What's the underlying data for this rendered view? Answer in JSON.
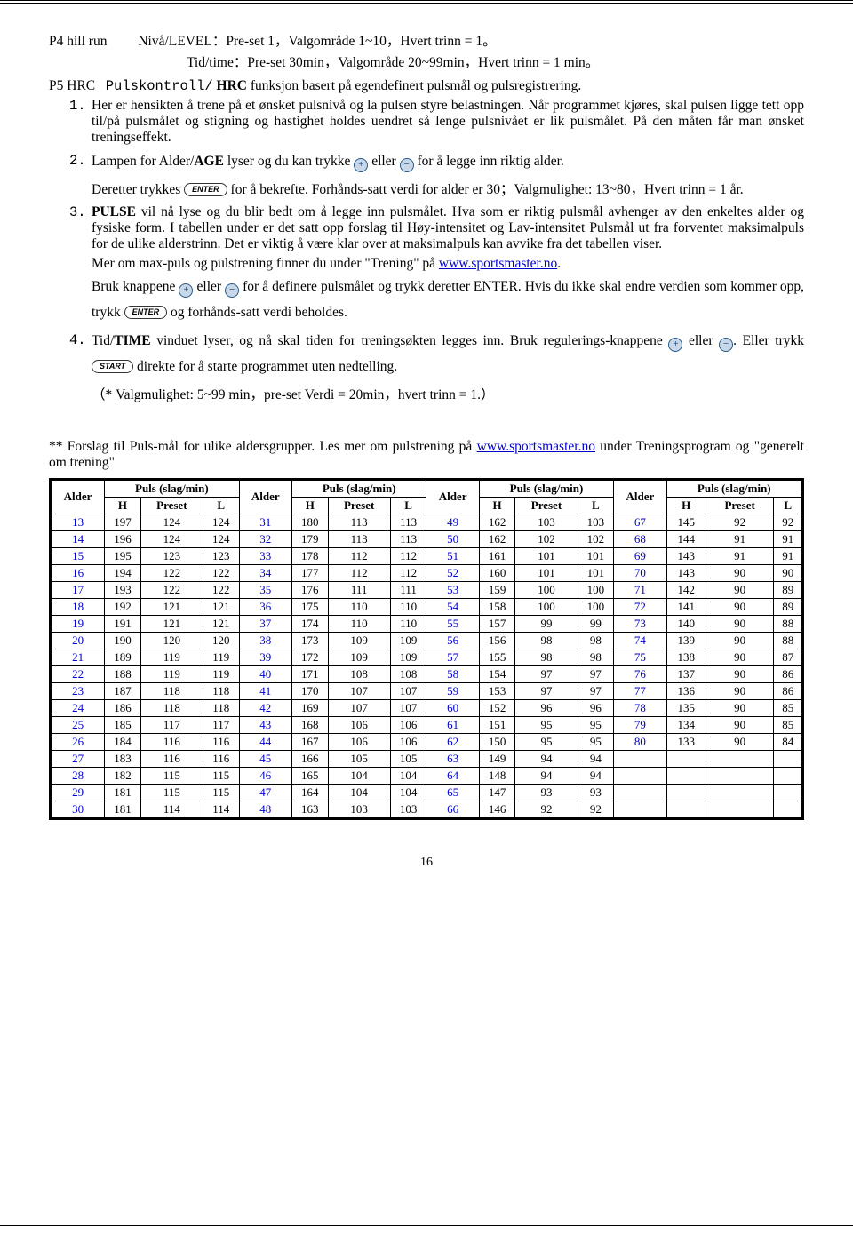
{
  "p4": {
    "label": "P4 hill run",
    "line1_after": "Nivå/LEVEL：Pre-set 1，Valgområde 1~10，Hvert trinn = 1。",
    "line2": "Tid/time：Pre-set 30min，Valgområde 20~99min，Hvert trinn = 1 min。"
  },
  "p5": {
    "line1_a": "P5 HRC",
    "line1_b": "Pulskontroll/",
    "line1_c": "HRC",
    "line1_d": "funksjon basert på egendefinert pulsmål og pulsregistrering."
  },
  "items": {
    "n1": "1.",
    "t1": "Her er hensikten å trene på et ønsket pulsnivå og la pulsen styre belastningen. Når programmet kjøres, skal pulsen ligge tett opp til/på pulsmålet og stigning og hastighet holdes uendret så lenge pulsnivået er lik pulsmålet. På den måten får man ønsket treningseffekt.",
    "n2": "2.",
    "t2a": "Lampen for Alder/",
    "t2b": "AGE",
    "t2c": " lyser og du kan trykke ",
    "t2d": " eller ",
    "t2e": " for å legge inn riktig alder.",
    "t2f": "Deretter trykkes ",
    "t2g": " for å bekrefte. Forhånds-satt verdi for alder er 30；Valgmulighet: 13~80，Hvert trinn = 1 år.",
    "n3": "3.",
    "t3a": "PULSE",
    "t3b": " vil nå lyse og du blir bedt om å legge inn pulsmålet. Hva som er riktig pulsmål avhenger av den enkeltes alder og fysiske form. I tabellen under er det satt opp forslag til Høy-intensitet og Lav-intensitet Pulsmål ut fra forventet maksimalpuls for de ulike alderstrinn. Det er viktig å være klar over at maksimalpuls kan avvike fra det tabellen viser.",
    "t3c": "Mer om max-puls og pulstrening finner du under \"Trening\" på ",
    "t3link": "www.sportsmaster.no",
    "t3d": ".",
    "t3e": "Bruk knappene ",
    "t3f": " eller ",
    "t3g": " for å definere pulsmålet og trykk deretter ENTER. Hvis du ikke skal endre verdien som kommer opp, trykk ",
    "t3h": " og forhånds-satt verdi beholdes.",
    "n4": "4.",
    "t4a": "Tid/",
    "t4b": "TIME",
    "t4c": " vinduet lyser, og nå skal tiden for treningsøkten legges inn. Bruk regulerings-knappene ",
    "t4d": " eller ",
    "t4e": ". Eller trykk ",
    "t4f": " direkte for å starte programmet uten nedtelling.",
    "t4g": "（* Valgmulighet: 5~99 min，pre-set Verdi = 20min，hvert trinn = 1.）"
  },
  "btn_enter": "ENTER",
  "btn_start": "START",
  "plus": "+",
  "minus": "−",
  "section2a": "** Forslag til Puls-mål for ulike aldersgrupper. Les mer om pulstrening på ",
  "section2link": "www.sportsmaster.no",
  "section2b": " under Treningsprogram og \"generelt om trening\"",
  "table": {
    "head_alder": "Alder",
    "head_puls": "Puls (slag/min)",
    "head_h": "H",
    "head_p": "Preset",
    "head_l": "L",
    "rows": [
      [
        13,
        197,
        124,
        124,
        31,
        180,
        113,
        113,
        49,
        162,
        103,
        103,
        67,
        145,
        92,
        92
      ],
      [
        14,
        196,
        124,
        124,
        32,
        179,
        113,
        113,
        50,
        162,
        102,
        102,
        68,
        144,
        91,
        91
      ],
      [
        15,
        195,
        123,
        123,
        33,
        178,
        112,
        112,
        51,
        161,
        101,
        101,
        69,
        143,
        91,
        91
      ],
      [
        16,
        194,
        122,
        122,
        34,
        177,
        112,
        112,
        52,
        160,
        101,
        101,
        70,
        143,
        90,
        90
      ],
      [
        17,
        193,
        122,
        122,
        35,
        176,
        111,
        111,
        53,
        159,
        100,
        100,
        71,
        142,
        90,
        89
      ],
      [
        18,
        192,
        121,
        121,
        36,
        175,
        110,
        110,
        54,
        158,
        100,
        100,
        72,
        141,
        90,
        89
      ],
      [
        19,
        191,
        121,
        121,
        37,
        174,
        110,
        110,
        55,
        157,
        99,
        99,
        73,
        140,
        90,
        88
      ],
      [
        20,
        190,
        120,
        120,
        38,
        173,
        109,
        109,
        56,
        156,
        98,
        98,
        74,
        139,
        90,
        88
      ],
      [
        21,
        189,
        119,
        119,
        39,
        172,
        109,
        109,
        57,
        155,
        98,
        98,
        75,
        138,
        90,
        87
      ],
      [
        22,
        188,
        119,
        119,
        40,
        171,
        108,
        108,
        58,
        154,
        97,
        97,
        76,
        137,
        90,
        86
      ],
      [
        23,
        187,
        118,
        118,
        41,
        170,
        107,
        107,
        59,
        153,
        97,
        97,
        77,
        136,
        90,
        86
      ],
      [
        24,
        186,
        118,
        118,
        42,
        169,
        107,
        107,
        60,
        152,
        96,
        96,
        78,
        135,
        90,
        85
      ],
      [
        25,
        185,
        117,
        117,
        43,
        168,
        106,
        106,
        61,
        151,
        95,
        95,
        79,
        134,
        90,
        85
      ],
      [
        26,
        184,
        116,
        116,
        44,
        167,
        106,
        106,
        62,
        150,
        95,
        95,
        80,
        133,
        90,
        84
      ],
      [
        27,
        183,
        116,
        116,
        45,
        166,
        105,
        105,
        63,
        149,
        94,
        94,
        "",
        "",
        "",
        ""
      ],
      [
        28,
        182,
        115,
        115,
        46,
        165,
        104,
        104,
        64,
        148,
        94,
        94,
        "",
        "",
        "",
        ""
      ],
      [
        29,
        181,
        115,
        115,
        47,
        164,
        104,
        104,
        65,
        147,
        93,
        93,
        "",
        "",
        "",
        ""
      ],
      [
        30,
        181,
        114,
        114,
        48,
        163,
        103,
        103,
        66,
        146,
        92,
        92,
        "",
        "",
        "",
        ""
      ]
    ]
  },
  "pagenum": "16"
}
